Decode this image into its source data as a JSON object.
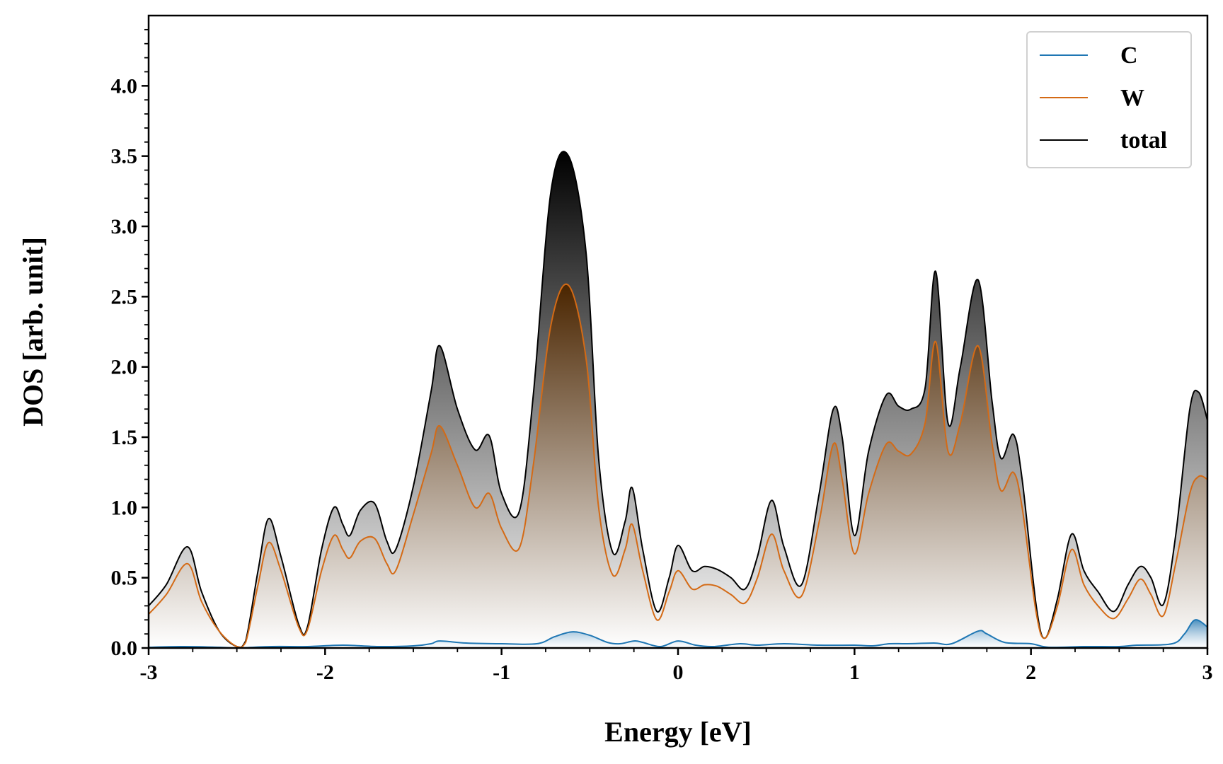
{
  "chart_data": {
    "type": "area",
    "xlabel": "Energy [eV]",
    "ylabel": "DOS [arb. unit]",
    "xlim": [
      -3,
      3
    ],
    "ylim": [
      0,
      4.5
    ],
    "x_ticks": [
      -3,
      -2,
      -1,
      0,
      1,
      2,
      3
    ],
    "x_tick_labels": [
      "-3",
      "-2",
      "-1",
      "0",
      "1",
      "2",
      "3"
    ],
    "y_ticks": [
      0,
      0.5,
      1,
      1.5,
      2,
      2.5,
      3,
      3.5,
      4
    ],
    "y_tick_labels": [
      "0.0",
      "0.5",
      "1.0",
      "1.5",
      "2.0",
      "2.5",
      "3.0",
      "3.5",
      "4.0"
    ],
    "grid": false,
    "legend_position": "top-right",
    "series": [
      {
        "name": "C",
        "color": "#1f77b4",
        "fill": "gradient",
        "points": [
          [
            -3.0,
            0.005
          ],
          [
            -2.8,
            0.01
          ],
          [
            -2.6,
            0.005
          ],
          [
            -2.5,
            0.0
          ],
          [
            -2.3,
            0.01
          ],
          [
            -2.1,
            0.01
          ],
          [
            -1.9,
            0.02
          ],
          [
            -1.7,
            0.01
          ],
          [
            -1.5,
            0.015
          ],
          [
            -1.4,
            0.03
          ],
          [
            -1.35,
            0.05
          ],
          [
            -1.2,
            0.035
          ],
          [
            -1.0,
            0.03
          ],
          [
            -0.8,
            0.03
          ],
          [
            -0.7,
            0.08
          ],
          [
            -0.6,
            0.115
          ],
          [
            -0.5,
            0.09
          ],
          [
            -0.4,
            0.04
          ],
          [
            -0.33,
            0.03
          ],
          [
            -0.25,
            0.05
          ],
          [
            -0.2,
            0.04
          ],
          [
            -0.1,
            0.01
          ],
          [
            0.0,
            0.05
          ],
          [
            0.1,
            0.02
          ],
          [
            0.2,
            0.01
          ],
          [
            0.35,
            0.03
          ],
          [
            0.45,
            0.02
          ],
          [
            0.6,
            0.03
          ],
          [
            0.8,
            0.02
          ],
          [
            1.0,
            0.02
          ],
          [
            1.1,
            0.015
          ],
          [
            1.2,
            0.03
          ],
          [
            1.3,
            0.03
          ],
          [
            1.45,
            0.035
          ],
          [
            1.55,
            0.03
          ],
          [
            1.7,
            0.12
          ],
          [
            1.75,
            0.1
          ],
          [
            1.85,
            0.04
          ],
          [
            2.0,
            0.03
          ],
          [
            2.1,
            0.005
          ],
          [
            2.3,
            0.01
          ],
          [
            2.5,
            0.01
          ],
          [
            2.6,
            0.02
          ],
          [
            2.8,
            0.03
          ],
          [
            2.87,
            0.1
          ],
          [
            2.93,
            0.2
          ],
          [
            3.0,
            0.15
          ]
        ]
      },
      {
        "name": "W",
        "color": "#d46a15",
        "fill": "gradient",
        "points": [
          [
            -3.0,
            0.24
          ],
          [
            -2.9,
            0.38
          ],
          [
            -2.78,
            0.6
          ],
          [
            -2.7,
            0.33
          ],
          [
            -2.6,
            0.12
          ],
          [
            -2.5,
            0.01
          ],
          [
            -2.45,
            0.04
          ],
          [
            -2.38,
            0.45
          ],
          [
            -2.32,
            0.75
          ],
          [
            -2.25,
            0.55
          ],
          [
            -2.15,
            0.15
          ],
          [
            -2.1,
            0.13
          ],
          [
            -2.02,
            0.55
          ],
          [
            -1.95,
            0.8
          ],
          [
            -1.9,
            0.7
          ],
          [
            -1.86,
            0.64
          ],
          [
            -1.8,
            0.76
          ],
          [
            -1.72,
            0.78
          ],
          [
            -1.65,
            0.6
          ],
          [
            -1.6,
            0.55
          ],
          [
            -1.5,
            0.95
          ],
          [
            -1.4,
            1.38
          ],
          [
            -1.35,
            1.58
          ],
          [
            -1.25,
            1.3
          ],
          [
            -1.15,
            1.0
          ],
          [
            -1.07,
            1.1
          ],
          [
            -1.0,
            0.85
          ],
          [
            -0.9,
            0.71
          ],
          [
            -0.82,
            1.3
          ],
          [
            -0.72,
            2.3
          ],
          [
            -0.62,
            2.58
          ],
          [
            -0.52,
            2.05
          ],
          [
            -0.45,
            1.0
          ],
          [
            -0.37,
            0.52
          ],
          [
            -0.3,
            0.7
          ],
          [
            -0.26,
            0.88
          ],
          [
            -0.2,
            0.55
          ],
          [
            -0.12,
            0.2
          ],
          [
            -0.05,
            0.4
          ],
          [
            0.0,
            0.55
          ],
          [
            0.08,
            0.42
          ],
          [
            0.15,
            0.45
          ],
          [
            0.22,
            0.44
          ],
          [
            0.3,
            0.38
          ],
          [
            0.38,
            0.32
          ],
          [
            0.45,
            0.5
          ],
          [
            0.53,
            0.81
          ],
          [
            0.6,
            0.55
          ],
          [
            0.7,
            0.37
          ],
          [
            0.8,
            0.9
          ],
          [
            0.88,
            1.45
          ],
          [
            0.93,
            1.2
          ],
          [
            1.0,
            0.67
          ],
          [
            1.08,
            1.1
          ],
          [
            1.18,
            1.45
          ],
          [
            1.25,
            1.4
          ],
          [
            1.32,
            1.38
          ],
          [
            1.4,
            1.6
          ],
          [
            1.46,
            2.18
          ],
          [
            1.53,
            1.4
          ],
          [
            1.6,
            1.6
          ],
          [
            1.7,
            2.15
          ],
          [
            1.78,
            1.45
          ],
          [
            1.83,
            1.12
          ],
          [
            1.9,
            1.25
          ],
          [
            1.95,
            1.0
          ],
          [
            2.03,
            0.25
          ],
          [
            2.08,
            0.07
          ],
          [
            2.15,
            0.3
          ],
          [
            2.23,
            0.7
          ],
          [
            2.3,
            0.45
          ],
          [
            2.38,
            0.3
          ],
          [
            2.47,
            0.21
          ],
          [
            2.55,
            0.35
          ],
          [
            2.62,
            0.49
          ],
          [
            2.68,
            0.38
          ],
          [
            2.75,
            0.23
          ],
          [
            2.82,
            0.6
          ],
          [
            2.9,
            1.1
          ],
          [
            2.95,
            1.22
          ],
          [
            3.0,
            1.2
          ]
        ]
      },
      {
        "name": "total",
        "color": "#000000",
        "fill": "gradient",
        "points": [
          [
            -3.0,
            0.3
          ],
          [
            -2.9,
            0.45
          ],
          [
            -2.78,
            0.72
          ],
          [
            -2.7,
            0.4
          ],
          [
            -2.6,
            0.12
          ],
          [
            -2.5,
            0.01
          ],
          [
            -2.45,
            0.05
          ],
          [
            -2.38,
            0.55
          ],
          [
            -2.32,
            0.92
          ],
          [
            -2.25,
            0.65
          ],
          [
            -2.15,
            0.17
          ],
          [
            -2.1,
            0.15
          ],
          [
            -2.02,
            0.7
          ],
          [
            -1.95,
            1.0
          ],
          [
            -1.9,
            0.88
          ],
          [
            -1.86,
            0.8
          ],
          [
            -1.8,
            0.98
          ],
          [
            -1.72,
            1.03
          ],
          [
            -1.65,
            0.76
          ],
          [
            -1.6,
            0.7
          ],
          [
            -1.5,
            1.15
          ],
          [
            -1.4,
            1.82
          ],
          [
            -1.35,
            2.15
          ],
          [
            -1.25,
            1.7
          ],
          [
            -1.15,
            1.41
          ],
          [
            -1.07,
            1.51
          ],
          [
            -1.0,
            1.1
          ],
          [
            -0.9,
            0.97
          ],
          [
            -0.82,
            1.8
          ],
          [
            -0.72,
            3.25
          ],
          [
            -0.62,
            3.5
          ],
          [
            -0.52,
            2.8
          ],
          [
            -0.45,
            1.35
          ],
          [
            -0.37,
            0.68
          ],
          [
            -0.3,
            0.9
          ],
          [
            -0.26,
            1.14
          ],
          [
            -0.2,
            0.7
          ],
          [
            -0.12,
            0.26
          ],
          [
            -0.05,
            0.5
          ],
          [
            0.0,
            0.73
          ],
          [
            0.08,
            0.55
          ],
          [
            0.15,
            0.58
          ],
          [
            0.22,
            0.56
          ],
          [
            0.3,
            0.5
          ],
          [
            0.38,
            0.42
          ],
          [
            0.45,
            0.65
          ],
          [
            0.53,
            1.05
          ],
          [
            0.6,
            0.72
          ],
          [
            0.7,
            0.45
          ],
          [
            0.8,
            1.1
          ],
          [
            0.88,
            1.7
          ],
          [
            0.93,
            1.5
          ],
          [
            1.0,
            0.8
          ],
          [
            1.08,
            1.4
          ],
          [
            1.18,
            1.8
          ],
          [
            1.25,
            1.72
          ],
          [
            1.32,
            1.7
          ],
          [
            1.4,
            1.85
          ],
          [
            1.46,
            2.68
          ],
          [
            1.53,
            1.6
          ],
          [
            1.6,
            2.0
          ],
          [
            1.7,
            2.62
          ],
          [
            1.78,
            1.75
          ],
          [
            1.83,
            1.35
          ],
          [
            1.9,
            1.52
          ],
          [
            1.95,
            1.2
          ],
          [
            2.03,
            0.3
          ],
          [
            2.08,
            0.07
          ],
          [
            2.15,
            0.35
          ],
          [
            2.23,
            0.81
          ],
          [
            2.3,
            0.55
          ],
          [
            2.38,
            0.4
          ],
          [
            2.47,
            0.26
          ],
          [
            2.55,
            0.45
          ],
          [
            2.62,
            0.58
          ],
          [
            2.68,
            0.5
          ],
          [
            2.75,
            0.31
          ],
          [
            2.82,
            0.8
          ],
          [
            2.9,
            1.7
          ],
          [
            2.95,
            1.82
          ],
          [
            3.0,
            1.62
          ]
        ]
      }
    ]
  }
}
